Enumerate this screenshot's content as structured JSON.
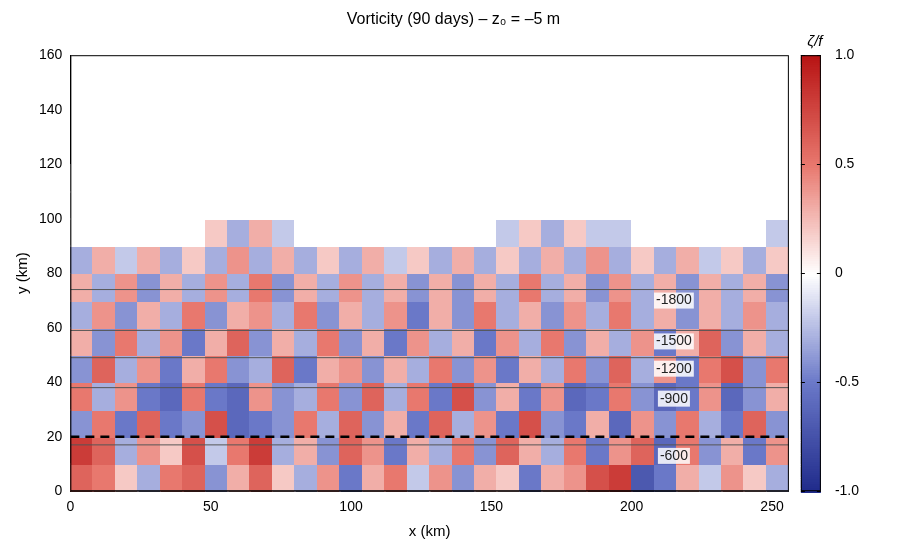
{
  "chart_data": {
    "type": "heatmap",
    "title": "Vorticity (90 days) – z₀ = –5 m",
    "x_label": "x (km)",
    "y_label": "y (km)",
    "xlim": [
      0,
      256
    ],
    "xticks": [
      0,
      50,
      100,
      150,
      200,
      250
    ],
    "ylim": [
      0,
      160
    ],
    "yticks": [
      0,
      20,
      40,
      60,
      80,
      100,
      120,
      140,
      160
    ],
    "grid": false,
    "cells": {
      "x_edges": [
        0,
        8,
        16,
        24,
        32,
        40,
        48,
        56,
        64,
        72,
        80,
        88,
        96,
        104,
        112,
        120,
        128,
        136,
        144,
        152,
        160,
        168,
        176,
        184,
        192,
        200,
        208,
        216,
        224,
        232,
        240,
        248,
        256
      ],
      "y_edges": [
        0,
        10,
        20,
        30,
        40,
        50,
        60,
        70,
        80,
        90,
        100,
        110,
        120
      ],
      "values": [
        [
          0.6,
          0.5,
          0.2,
          -0.3,
          0.5,
          0.6,
          -0.4,
          0.3,
          0.6,
          0.2,
          -0.3,
          0.4,
          -0.5,
          0.3,
          0.5,
          -0.2,
          0.4,
          -0.4,
          0.3,
          0.2,
          -0.5,
          0.3,
          0.4,
          0.7,
          0.8,
          -0.7,
          -0.5,
          0.3,
          -0.2,
          0.4,
          0.2,
          -0.3
        ],
        [
          0.8,
          0.6,
          -0.3,
          0.4,
          0.2,
          0.7,
          -0.2,
          0.5,
          0.8,
          -0.3,
          0.3,
          -0.4,
          0.6,
          0.4,
          -0.5,
          0.3,
          -0.3,
          0.5,
          -0.4,
          0.6,
          0.3,
          -0.3,
          0.5,
          -0.5,
          0.4,
          0.6,
          -0.6,
          0.5,
          -0.4,
          0.3,
          -0.5,
          0.4
        ],
        [
          -0.4,
          0.5,
          -0.5,
          0.6,
          -0.5,
          -0.4,
          0.7,
          -0.6,
          -0.5,
          -0.4,
          0.5,
          -0.3,
          0.6,
          -0.4,
          0.3,
          -0.5,
          0.6,
          -0.3,
          0.4,
          -0.5,
          0.7,
          -0.4,
          -0.5,
          0.3,
          -0.6,
          0.4,
          -0.4,
          0.5,
          -0.3,
          -0.5,
          0.6,
          -0.4
        ],
        [
          0.5,
          -0.3,
          0.4,
          -0.5,
          -0.6,
          0.5,
          -0.5,
          -0.6,
          0.4,
          -0.4,
          -0.3,
          0.5,
          -0.4,
          0.6,
          -0.3,
          0.5,
          -0.5,
          0.7,
          -0.4,
          0.3,
          -0.5,
          0.4,
          -0.6,
          -0.5,
          0.5,
          -0.4,
          -0.6,
          -0.5,
          0.4,
          -0.6,
          -0.4,
          0.3
        ],
        [
          -0.4,
          0.6,
          -0.3,
          0.4,
          -0.5,
          0.3,
          0.5,
          -0.4,
          -0.3,
          0.6,
          -0.5,
          0.3,
          0.4,
          -0.4,
          0.3,
          -0.3,
          0.5,
          -0.4,
          0.4,
          -0.5,
          0.3,
          -0.3,
          0.5,
          -0.4,
          0.6,
          -0.3,
          0.4,
          -0.5,
          0.5,
          0.7,
          -0.4,
          0.5
        ],
        [
          0.3,
          -0.4,
          0.5,
          -0.3,
          0.4,
          -0.5,
          0.3,
          0.6,
          -0.4,
          0.3,
          -0.3,
          0.5,
          -0.4,
          0.3,
          -0.5,
          0.4,
          -0.3,
          0.3,
          -0.5,
          0.4,
          -0.3,
          0.5,
          -0.4,
          0.3,
          -0.3,
          0.4,
          -0.5,
          0.3,
          0.6,
          -0.4,
          0.3,
          -0.3
        ],
        [
          -0.3,
          0.4,
          -0.4,
          0.3,
          -0.3,
          0.5,
          -0.4,
          0.3,
          0.4,
          -0.3,
          0.5,
          -0.4,
          0.3,
          -0.3,
          0.4,
          -0.5,
          0.3,
          -0.4,
          0.5,
          -0.3,
          0.3,
          -0.4,
          0.4,
          -0.3,
          0.5,
          -0.3,
          0.3,
          -0.4,
          0.3,
          -0.3,
          0.4,
          -0.3
        ],
        [
          0.3,
          -0.3,
          0.4,
          -0.4,
          0.3,
          -0.3,
          0.4,
          -0.3,
          0.5,
          -0.4,
          0.3,
          -0.3,
          0.4,
          -0.3,
          0.3,
          -0.4,
          0.3,
          -0.4,
          0.3,
          -0.3,
          0.5,
          -0.3,
          0.3,
          -0.4,
          0.4,
          -0.3,
          0.3,
          -0.4,
          0.3,
          -0.3,
          0.3,
          -0.4
        ],
        [
          -0.3,
          0.3,
          -0.2,
          0.3,
          -0.3,
          0.2,
          -0.3,
          0.4,
          -0.3,
          0.3,
          -0.3,
          0.2,
          -0.3,
          0.3,
          -0.2,
          0.2,
          -0.3,
          0.3,
          -0.3,
          0.2,
          -0.3,
          0.3,
          -0.3,
          0.4,
          -0.3,
          0.2,
          -0.3,
          0.3,
          -0.2,
          0.2,
          -0.3,
          0.2
        ],
        [
          0,
          0,
          0,
          0,
          0,
          0,
          0.2,
          -0.3,
          0.3,
          -0.2,
          0,
          0,
          0,
          0,
          0,
          0,
          0,
          0,
          0,
          -0.2,
          0.2,
          -0.3,
          0.2,
          -0.2,
          -0.2,
          0,
          0,
          0,
          0,
          0,
          0,
          -0.2
        ],
        [
          0,
          0,
          0,
          0,
          0,
          0,
          0,
          0,
          0,
          0,
          0,
          0,
          0,
          0,
          0,
          0,
          0,
          0,
          0,
          0,
          0,
          0,
          0,
          0,
          0,
          0,
          0,
          0,
          0,
          0,
          0,
          0
        ],
        [
          0,
          0,
          0,
          0,
          0,
          0,
          0,
          0,
          0,
          0,
          0,
          0,
          0,
          0,
          0,
          0,
          0,
          0,
          0,
          0,
          0,
          0,
          0,
          0,
          0,
          0,
          0,
          0,
          0,
          0,
          0,
          0
        ]
      ]
    },
    "colorbar": {
      "title": "ζ/f",
      "lim": [
        -1,
        1
      ],
      "ticks": [
        -1,
        -0.5,
        0,
        0.5,
        1
      ]
    },
    "contours": [
      {
        "depth": -1800,
        "y": 74,
        "color": "#555555"
      },
      {
        "depth": -1500,
        "y": 59,
        "color": "#555555"
      },
      {
        "depth": -1200,
        "y": 49,
        "color": "#555555"
      },
      {
        "depth": -900,
        "y": 38,
        "color": "#555555"
      },
      {
        "depth": -600,
        "y": 17,
        "color": "#555555"
      }
    ],
    "lines": [
      {
        "y": 20,
        "line_style": "dashed",
        "color": "#000000"
      }
    ]
  }
}
